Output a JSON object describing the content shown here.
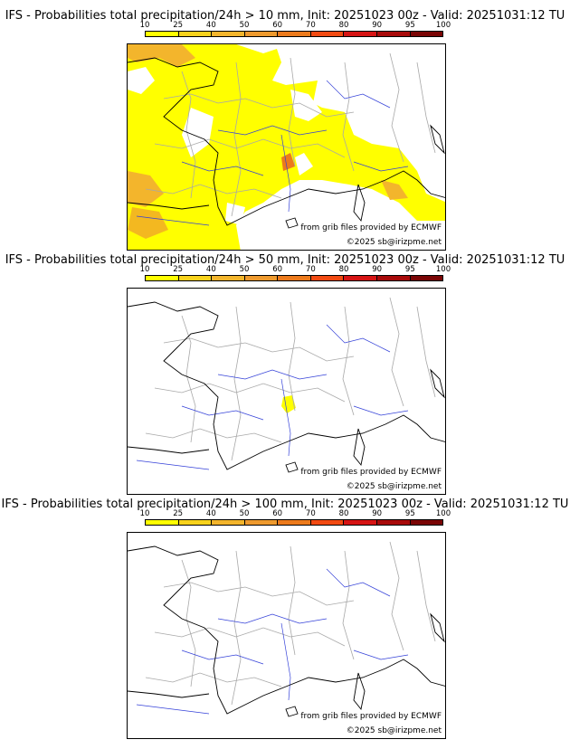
{
  "colorbar": {
    "ticks": [
      "10",
      "25",
      "40",
      "50",
      "60",
      "70",
      "80",
      "90",
      "95",
      "100"
    ],
    "colors": [
      "#ffff00",
      "#f8d21c",
      "#f3b52c",
      "#ee9a2e",
      "#ec7a1c",
      "#f24a12",
      "#d61414",
      "#a80a0a",
      "#7a0505"
    ]
  },
  "panels": [
    {
      "title": "IFS - Probabilities total precipitation/24h > 10 mm, Init: 20251023 00z - Valid: 20251031:12 TU",
      "source_note": "from grib files provided by ECMWF",
      "copyright": "©2025 sb@irizpme.net"
    },
    {
      "title": "IFS - Probabilities total precipitation/24h > 50 mm, Init: 20251023 00z - Valid: 20251031:12 TU",
      "source_note": "from grib files provided by ECMWF",
      "copyright": "©2025 sb@irizpme.net"
    },
    {
      "title": "IFS - Probabilities total precipitation/24h > 100 mm, Init: 20251023 00z - Valid: 20251031:12 TU",
      "source_note": "from grib files provided by ECMWF",
      "copyright": "©2025 sb@irizpme.net"
    }
  ],
  "colors": {
    "coastline": "#000000",
    "rivers": "#3340d8",
    "borders": "#a8a8a8",
    "prob_low": "#ffff00",
    "prob_mid": "#f3b52c",
    "prob_high": "#ec7a1c"
  }
}
